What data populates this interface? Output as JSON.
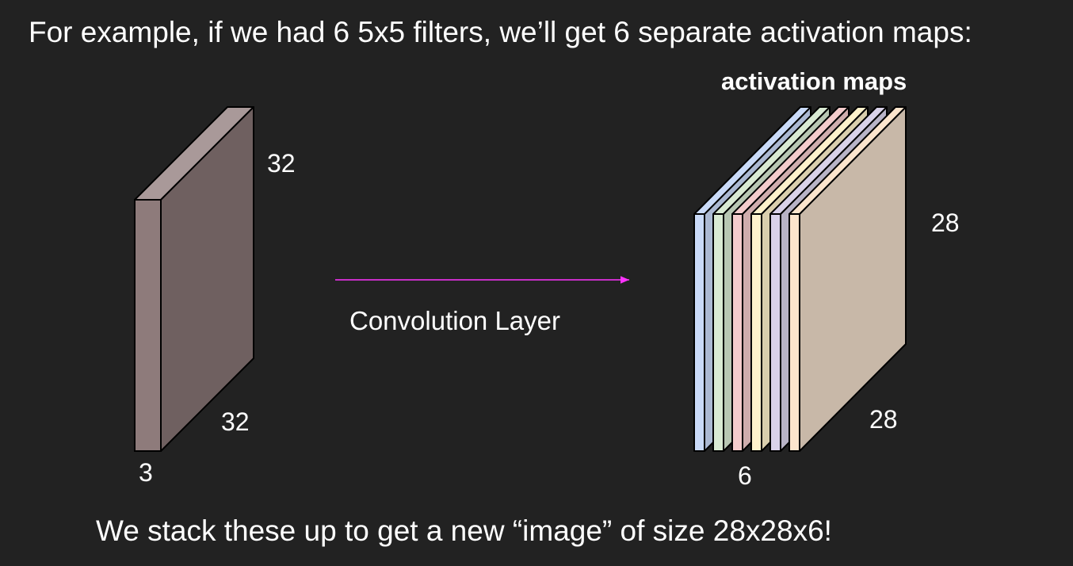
{
  "heading": "For example, if we had 6 5x5 filters, we’ll get 6 separate activation maps:",
  "input_volume": {
    "height_label": "32",
    "width_label": "32",
    "depth_label": "3",
    "colors": {
      "front": "#8e7b7b",
      "top": "#a99999",
      "side": "#6f6060"
    }
  },
  "arrow": {
    "label": "Convolution Layer",
    "color": "#ff33ff"
  },
  "activation_maps": {
    "title": "activation maps",
    "height_label": "28",
    "width_label": "28",
    "depth_label": "6",
    "map_colors": [
      "#c9daf8",
      "#d9ead3",
      "#f4cccc",
      "#fff2cc",
      "#d9d2e9",
      "#fce5cd"
    ],
    "back_face_color": "#c8b8a8"
  },
  "caption": "We stack these up to get a new “image” of size 28x28x6!"
}
